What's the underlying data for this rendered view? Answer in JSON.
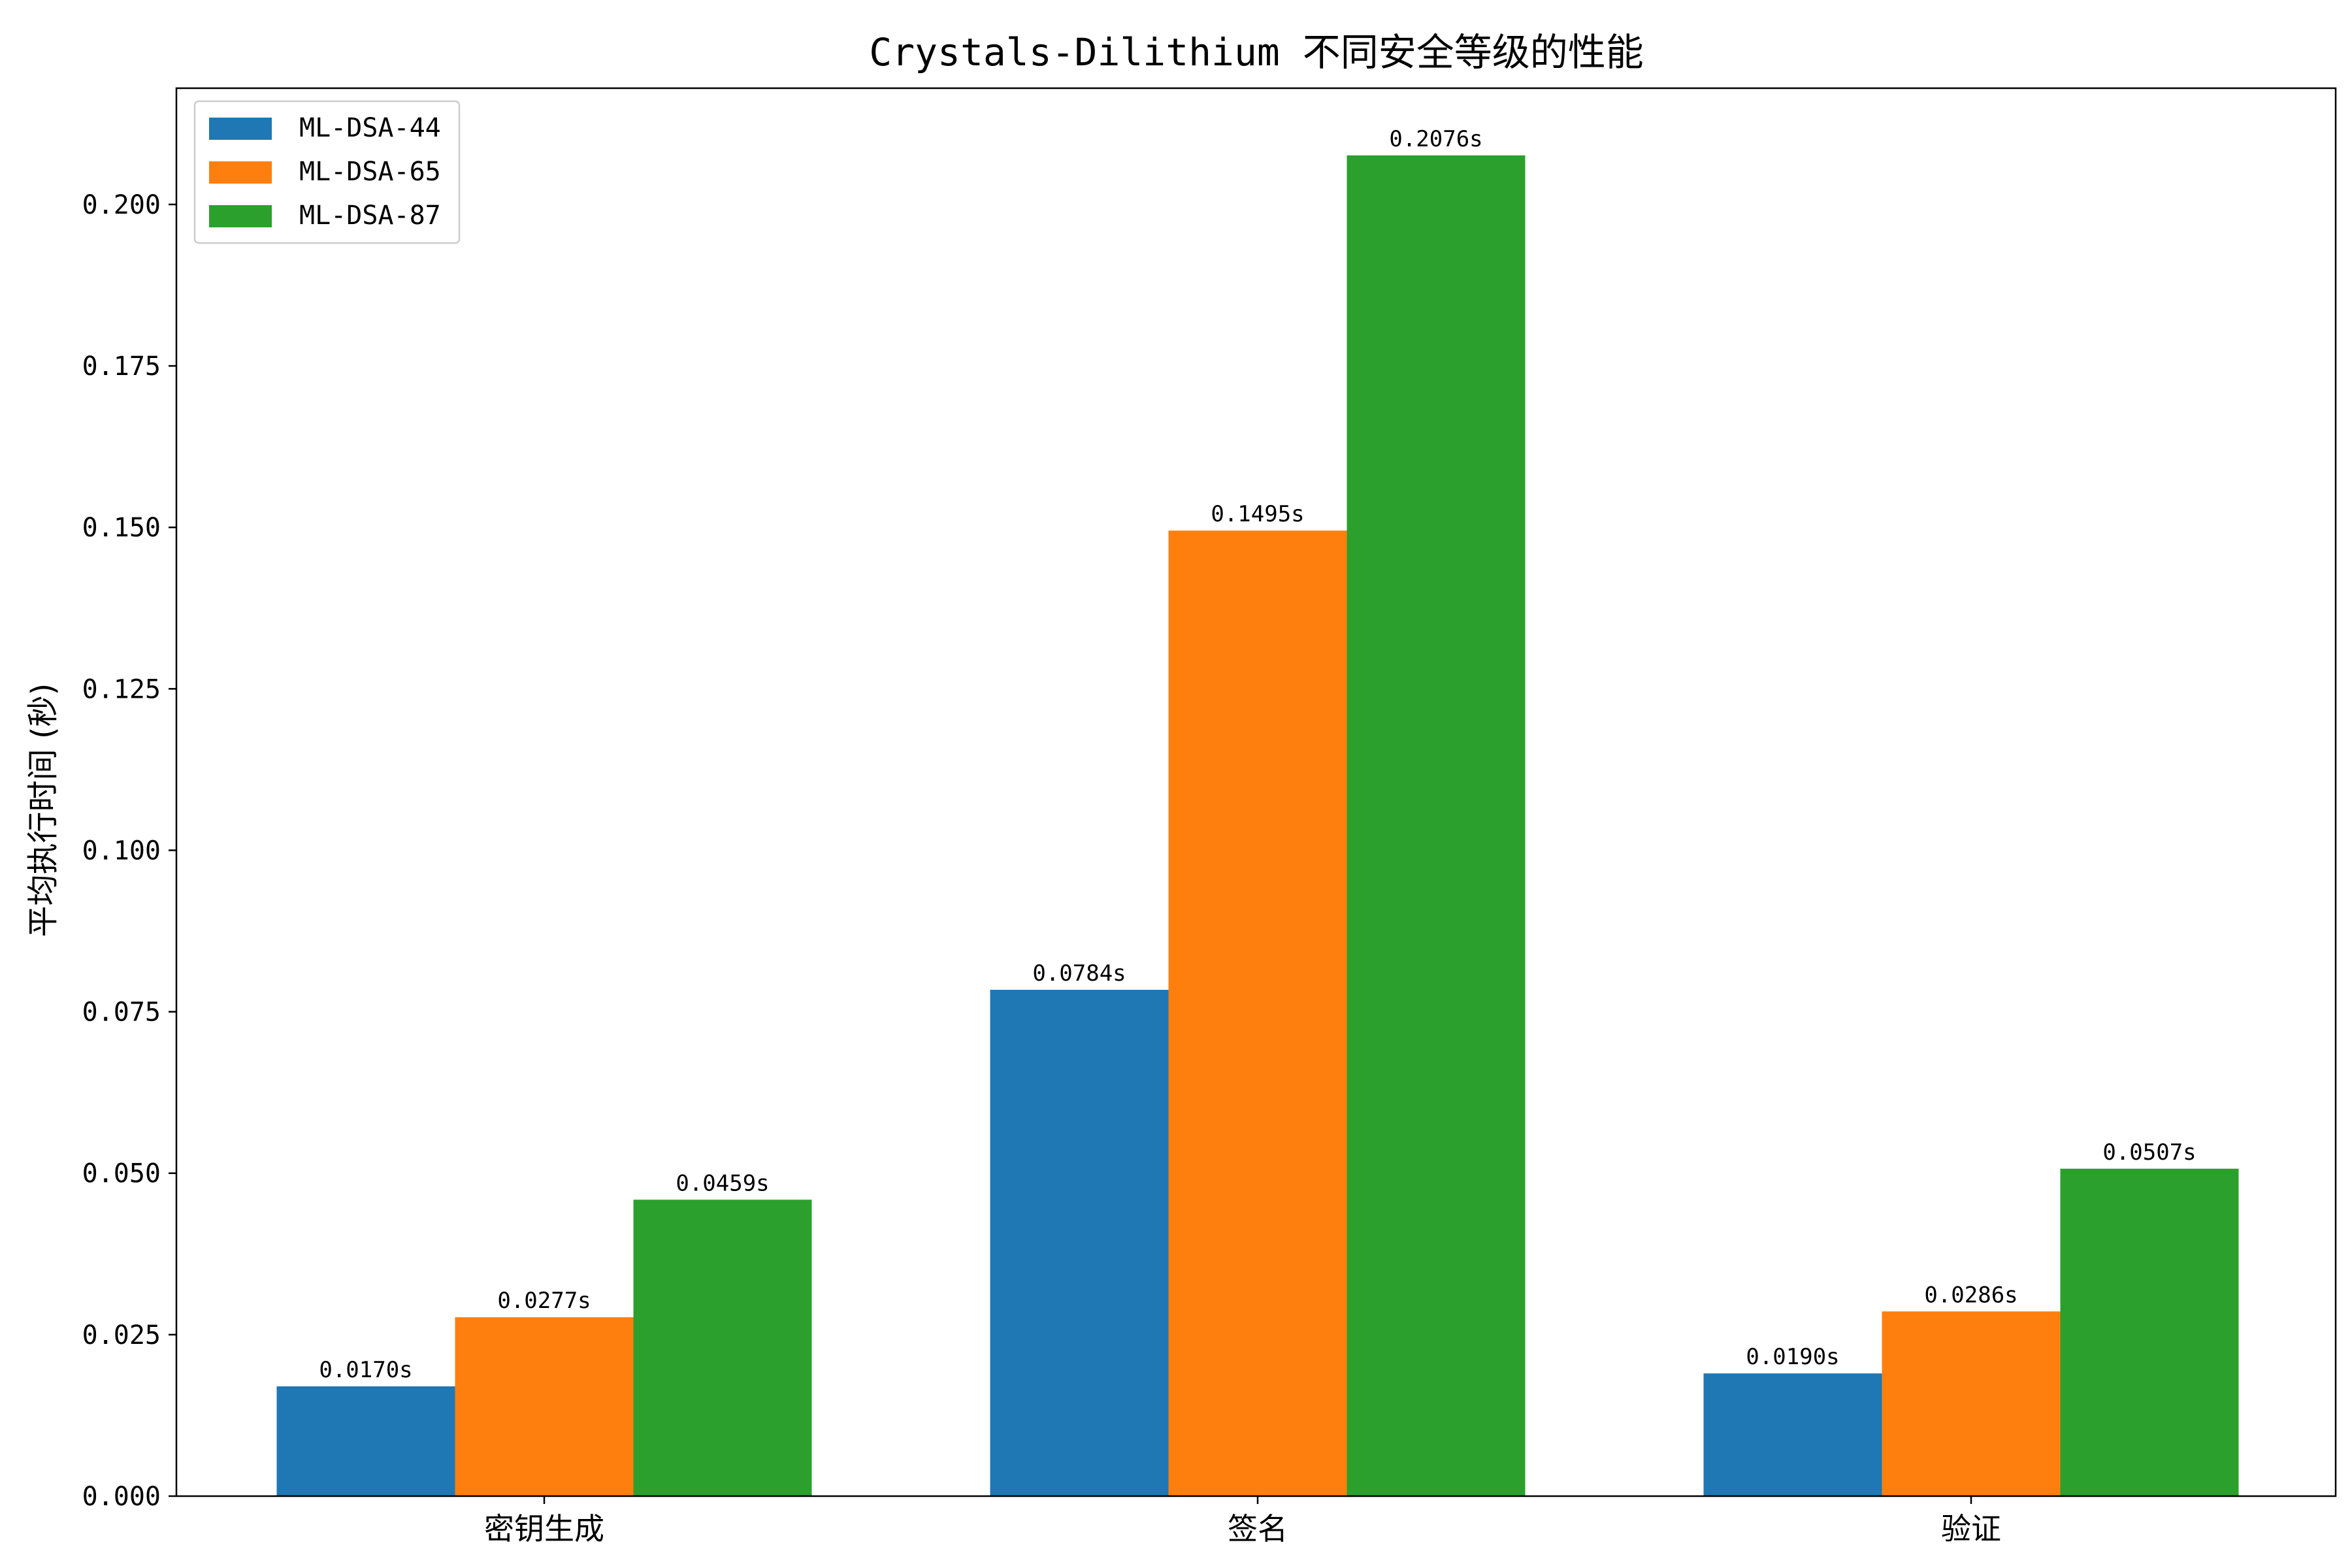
{
  "chart_data": {
    "type": "bar",
    "title": "Crystals-Dilithium 不同安全等级的性能",
    "xlabel": "",
    "ylabel": "平均执行时间 (秒)",
    "categories": [
      "密钥生成",
      "签名",
      "验证"
    ],
    "series": [
      {
        "name": "ML-DSA-44",
        "color": "#1f77b4",
        "values": [
          0.017,
          0.0784,
          0.019
        ],
        "labels": [
          "0.0170s",
          "0.0784s",
          "0.0190s"
        ]
      },
      {
        "name": "ML-DSA-65",
        "color": "#ff7f0e",
        "values": [
          0.0277,
          0.1495,
          0.0286
        ],
        "labels": [
          "0.0277s",
          "0.1495s",
          "0.0286s"
        ]
      },
      {
        "name": "ML-DSA-87",
        "color": "#2ca02c",
        "values": [
          0.0459,
          0.2076,
          0.0507
        ],
        "labels": [
          "0.0459s",
          "0.2076s",
          "0.0507s"
        ]
      }
    ],
    "ylim": [
      0,
      0.218
    ],
    "yticks": [
      "0.000",
      "0.025",
      "0.050",
      "0.075",
      "0.100",
      "0.125",
      "0.150",
      "0.175",
      "0.200"
    ],
    "ytick_values": [
      0,
      0.025,
      0.05,
      0.075,
      0.1,
      0.125,
      0.15,
      0.175,
      0.2
    ],
    "legend_position": "top-left",
    "grid": false
  }
}
